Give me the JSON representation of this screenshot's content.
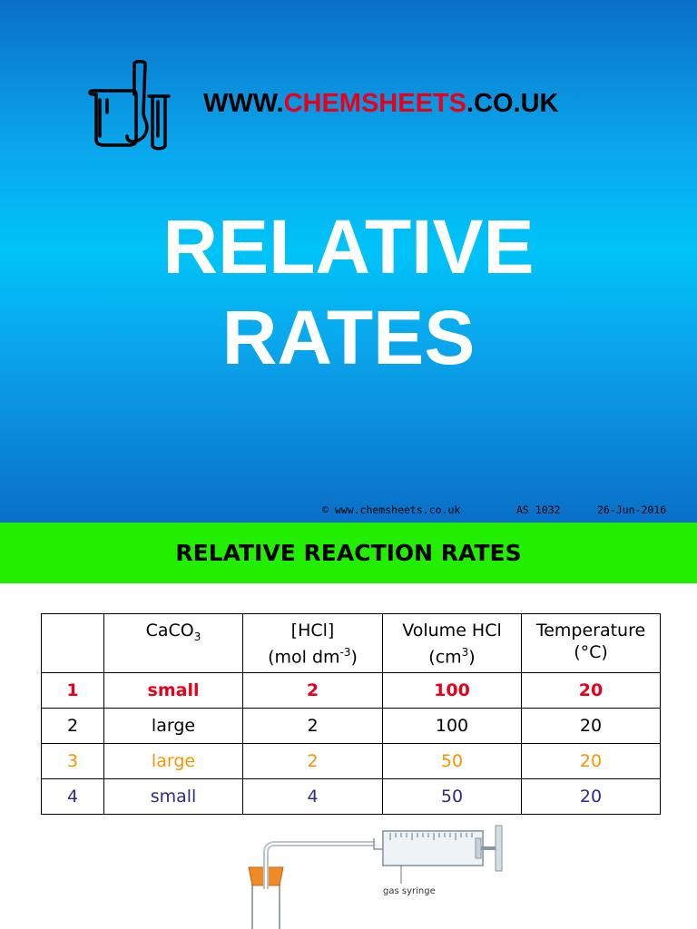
{
  "slide": {
    "logo_icon": "laboratory-glassware-icon",
    "url_prefix": "WWW.",
    "url_brand": "CHEMSHEETS",
    "url_suffix": ".CO.UK",
    "title_line1": "RELATIVE",
    "title_line2": "RATES",
    "footer_copyright": "© www.chemsheets.co.uk",
    "footer_code": "AS 1032",
    "footer_date": "26-Jun-2016"
  },
  "section": {
    "title": "RELATIVE REACTION RATES"
  },
  "table": {
    "headers": {
      "num": "",
      "caco3_main": "CaCO",
      "caco3_sub": "3",
      "hcl_line1": "[HCl]",
      "hcl_line2_a": "(mol dm",
      "hcl_line2_sup": "-3",
      "hcl_line2_b": ")",
      "vol_line1": "Volume HCl",
      "vol_line2_a": "(cm",
      "vol_line2_sup": "3",
      "vol_line2_b": ")",
      "temp_line1": "Temperature",
      "temp_line2": "(°C)"
    },
    "rows": [
      {
        "num": "1",
        "caco3": "small",
        "hcl": "2",
        "volume": "100",
        "temperature": "20"
      },
      {
        "num": "2",
        "caco3": "large",
        "hcl": "2",
        "volume": "100",
        "temperature": "20"
      },
      {
        "num": "3",
        "caco3": "large",
        "hcl": "2",
        "volume": "50",
        "temperature": "20"
      },
      {
        "num": "4",
        "caco3": "small",
        "hcl": "4",
        "volume": "50",
        "temperature": "20"
      }
    ],
    "row_colors": [
      "#e8001a",
      "#000000",
      "#f59500",
      "#2c2a8a"
    ]
  },
  "apparatus": {
    "icon": "gas-syringe-apparatus-icon",
    "label": "gas syringe"
  },
  "colors": {
    "slide_blue": "#0a6fc8",
    "slide_cyan": "#00c4f8",
    "brand_red": "#e8001a",
    "section_green": "#22ee00"
  }
}
